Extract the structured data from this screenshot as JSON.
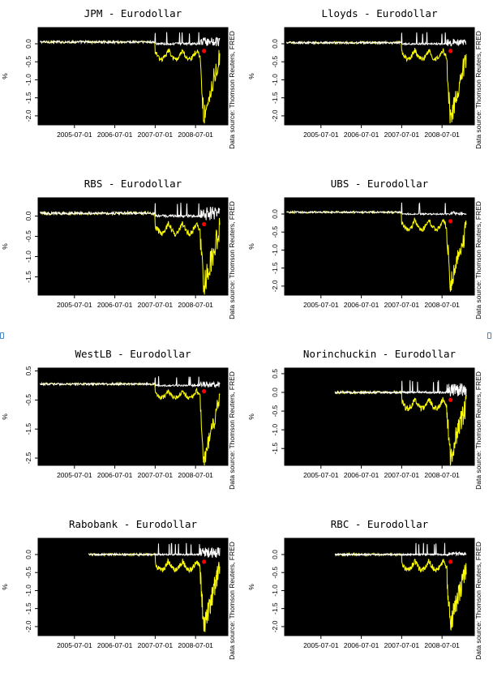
{
  "chart_data": [
    {
      "type": "line",
      "title": "JPM - Eurodollar",
      "ylabel": "%",
      "source_note": "Data source: Thomson Reuters, FRED",
      "ylim": [
        -2.25,
        0.45
      ],
      "yticks": [
        0.0,
        -0.5,
        -1.0,
        -1.5,
        -2.0
      ],
      "ytick_labels": [
        "0.0",
        "-0.5",
        "-1.0",
        "-1.5",
        "-2.0"
      ],
      "xlim": [
        2004.6,
        2009.3
      ],
      "xticks": [
        2005.5,
        2006.5,
        2007.5,
        2008.5
      ],
      "xtick_labels": [
        "2005-07-01",
        "2006-07-01",
        "2007-07-01",
        "2008-07-01"
      ],
      "series": [
        {
          "color": "#ffffff",
          "start": 2004.65
        },
        {
          "color": "#ffff00",
          "start": 2004.65
        }
      ],
      "marker": {
        "x": 2008.71,
        "y": -0.2,
        "color": "#ff0000"
      },
      "profile": {
        "preShift": 0.05,
        "w1": 0.06,
        "crisis": [
          -0.55,
          -2.05,
          -0.3
        ],
        "w2": 0.25
      }
    },
    {
      "type": "line",
      "title": "Lloyds - Eurodollar",
      "ylabel": "%",
      "source_note": "Data source: Thomson Reuters, FRED",
      "ylim": [
        -2.25,
        0.45
      ],
      "yticks": [
        0.0,
        -0.5,
        -1.0,
        -1.5,
        -2.0
      ],
      "ytick_labels": [
        "0.0",
        "-0.5",
        "-1.0",
        "-1.5",
        "-2.0"
      ],
      "xlim": [
        2004.6,
        2009.3
      ],
      "xticks": [
        2005.5,
        2006.5,
        2007.5,
        2008.5
      ],
      "xtick_labels": [
        "2005-07-01",
        "2006-07-01",
        "2007-07-01",
        "2008-07-01"
      ],
      "series": [
        {
          "color": "#ffffff",
          "start": 2004.65
        },
        {
          "color": "#ffff00",
          "start": 2004.65
        }
      ],
      "marker": {
        "x": 2008.71,
        "y": -0.2,
        "color": "#ff0000"
      },
      "profile": {
        "preShift": 0.03,
        "w1": 0.05,
        "crisis": [
          -0.6,
          -2.1,
          -0.35
        ],
        "w2": 0.2
      }
    },
    {
      "type": "line",
      "title": "RBS - Eurodollar",
      "ylabel": "%",
      "source_note": "Data source: Thomson Reuters, FRED",
      "ylim": [
        -1.95,
        0.45
      ],
      "yticks": [
        0.0,
        -0.5,
        -1.0,
        -1.5
      ],
      "ytick_labels": [
        "0.0",
        "-0.5",
        "-1.0",
        "-1.5"
      ],
      "xlim": [
        2004.6,
        2009.3
      ],
      "xticks": [
        2005.5,
        2006.5,
        2007.5,
        2008.5
      ],
      "xtick_labels": [
        "2005-07-01",
        "2006-07-01",
        "2007-07-01",
        "2008-07-01"
      ],
      "series": [
        {
          "color": "#ffffff",
          "start": 2004.65
        },
        {
          "color": "#ffff00",
          "start": 2004.65
        }
      ],
      "marker": {
        "x": 2008.71,
        "y": -0.2,
        "color": "#ff0000"
      },
      "profile": {
        "preShift": 0.07,
        "w1": 0.06,
        "crisis": [
          -0.5,
          -1.75,
          -0.3
        ],
        "w2": 0.35
      }
    },
    {
      "type": "line",
      "title": "UBS - Eurodollar",
      "ylabel": "%",
      "source_note": "Data source: Thomson Reuters, FRED",
      "ylim": [
        -2.25,
        0.45
      ],
      "yticks": [
        0.0,
        -0.5,
        -1.0,
        -1.5,
        -2.0
      ],
      "ytick_labels": [
        "0.0",
        "-0.5",
        "-1.0",
        "-1.5",
        "-2.0"
      ],
      "xlim": [
        2004.6,
        2009.3
      ],
      "xticks": [
        2005.5,
        2006.5,
        2007.5,
        2008.5
      ],
      "xtick_labels": [
        "2005-07-01",
        "2006-07-01",
        "2007-07-01",
        "2008-07-01"
      ],
      "series": [
        {
          "color": "#ffffff",
          "start": 2004.65
        },
        {
          "color": "#ffff00",
          "start": 2004.65
        }
      ],
      "marker": {
        "x": 2008.71,
        "y": -0.2,
        "color": "#ff0000"
      },
      "profile": {
        "preShift": 0.05,
        "w1": 0.04,
        "crisis": [
          -0.6,
          -1.95,
          -0.4
        ],
        "w2": 0.1
      }
    },
    {
      "type": "line",
      "title": "WestLB - Eurodollar",
      "ylabel": "%",
      "source_note": "Data source: Thomson Reuters, FRED",
      "ylim": [
        -2.75,
        0.6
      ],
      "yticks": [
        0.5,
        -0.5,
        -1.5,
        -2.5
      ],
      "ytick_labels": [
        "0.5",
        "-0.5",
        "-1.5",
        "-2.5"
      ],
      "xlim": [
        2004.6,
        2009.3
      ],
      "xticks": [
        2005.5,
        2006.5,
        2007.5,
        2008.5
      ],
      "xtick_labels": [
        "2005-07-01",
        "2006-07-01",
        "2007-07-01",
        "2008-07-01"
      ],
      "series": [
        {
          "color": "#ffffff",
          "start": 2004.65
        },
        {
          "color": "#ffff00",
          "start": 2004.65
        }
      ],
      "marker": {
        "x": 2008.71,
        "y": -0.2,
        "color": "#ff0000"
      },
      "profile": {
        "preShift": 0.05,
        "w1": 0.06,
        "crisis": [
          -0.75,
          -2.6,
          -0.45
        ],
        "w2": 0.2
      }
    },
    {
      "type": "line",
      "title": "Norinchuckin - Eurodollar",
      "ylabel": "%",
      "source_note": "Data source: Thomson Reuters, FRED",
      "ylim": [
        -1.95,
        0.65
      ],
      "yticks": [
        0.5,
        0.0,
        -0.5,
        -1.0,
        -1.5
      ],
      "ytick_labels": [
        "0.5",
        "0.0",
        "-0.5",
        "-1.0",
        "-1.5"
      ],
      "xlim": [
        2004.6,
        2009.3
      ],
      "xticks": [
        2005.5,
        2006.5,
        2007.5,
        2008.5
      ],
      "xtick_labels": [
        "2005-07-01",
        "2006-07-01",
        "2007-07-01",
        "2008-07-01"
      ],
      "series": [
        {
          "color": "#ffffff",
          "start": 2005.85
        },
        {
          "color": "#ffff00",
          "start": 2005.85
        }
      ],
      "marker": {
        "x": 2008.71,
        "y": -0.2,
        "color": "#ff0000"
      },
      "profile": {
        "preShift": 0.0,
        "w1": 0.05,
        "crisis": [
          -0.45,
          -1.75,
          -0.3
        ],
        "w2": 0.35
      }
    },
    {
      "type": "line",
      "title": "Rabobank - Eurodollar",
      "ylabel": "%",
      "source_note": "Data source: Thomson Reuters, FRED",
      "ylim": [
        -2.25,
        0.45
      ],
      "yticks": [
        0.0,
        -0.5,
        -1.0,
        -1.5,
        -2.0
      ],
      "ytick_labels": [
        "0.0",
        "-0.5",
        "-1.0",
        "-1.5",
        "-2.0"
      ],
      "xlim": [
        2004.6,
        2009.3
      ],
      "xticks": [
        2005.5,
        2006.5,
        2007.5,
        2008.5
      ],
      "xtick_labels": [
        "2005-07-01",
        "2006-07-01",
        "2007-07-01",
        "2008-07-01"
      ],
      "series": [
        {
          "color": "#ffffff",
          "start": 2005.85
        },
        {
          "color": "#ffff00",
          "start": 2005.85
        }
      ],
      "marker": {
        "x": 2008.71,
        "y": -0.2,
        "color": "#ff0000"
      },
      "profile": {
        "preShift": 0.0,
        "w1": 0.04,
        "crisis": [
          -0.55,
          -2.05,
          -0.35
        ],
        "w2": 0.3
      }
    },
    {
      "type": "line",
      "title": "RBC - Eurodollar",
      "ylabel": "%",
      "source_note": "Data source: Thomson Reuters, FRED",
      "ylim": [
        -2.25,
        0.45
      ],
      "yticks": [
        0.0,
        -0.5,
        -1.0,
        -1.5,
        -2.0
      ],
      "ytick_labels": [
        "0.0",
        "-0.5",
        "-1.0",
        "-1.5",
        "-2.0"
      ],
      "xlim": [
        2004.6,
        2009.3
      ],
      "xticks": [
        2005.5,
        2006.5,
        2007.5,
        2008.5
      ],
      "xtick_labels": [
        "2005-07-01",
        "2006-07-01",
        "2007-07-01",
        "2008-07-01"
      ],
      "series": [
        {
          "color": "#ffffff",
          "start": 2005.85
        },
        {
          "color": "#ffff00",
          "start": 2005.85
        }
      ],
      "marker": {
        "x": 2008.71,
        "y": -0.2,
        "color": "#ff0000"
      },
      "profile": {
        "preShift": 0.0,
        "w1": 0.04,
        "crisis": [
          -0.6,
          -1.95,
          -0.35
        ],
        "w2": 0.1
      }
    }
  ]
}
